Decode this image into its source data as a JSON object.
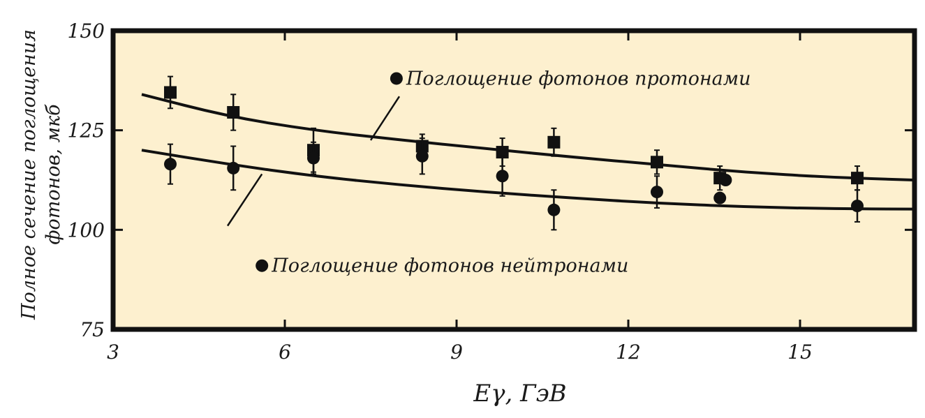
{
  "chart_data": {
    "type": "scatter",
    "xlabel": "Eγ, ГэВ",
    "ylabel": [
      "Полное сечение поглощения",
      "фотонов, мкб"
    ],
    "xlim": [
      3,
      17
    ],
    "ylim": [
      75,
      150
    ],
    "xticks": [
      3,
      6,
      9,
      12,
      15
    ],
    "yticks": [
      75,
      100,
      125,
      150
    ],
    "background": "#fdf0cf",
    "frame_color": "#111111",
    "series": [
      {
        "name": "Поглощение фотонов протонами",
        "marker": "square",
        "color": "#111111",
        "points": [
          {
            "x": 4.0,
            "y": 134.5,
            "err": 4.0
          },
          {
            "x": 5.1,
            "y": 129.5,
            "err": 4.5
          },
          {
            "x": 6.5,
            "y": 120.0,
            "err": 5.5
          },
          {
            "x": 8.4,
            "y": 121.0,
            "err": 3.0
          },
          {
            "x": 9.8,
            "y": 119.5,
            "err": 3.5
          },
          {
            "x": 10.7,
            "y": 122.0,
            "err": 3.5
          },
          {
            "x": 12.5,
            "y": 117.0,
            "err": 3.0
          },
          {
            "x": 13.6,
            "y": 113.0,
            "err": 3.0
          },
          {
            "x": 16.0,
            "y": 113.0,
            "err": 3.0
          }
        ],
        "fit": [
          [
            3.5,
            134.0
          ],
          [
            5.0,
            128.5
          ],
          [
            6.5,
            125.0
          ],
          [
            8.0,
            122.6
          ],
          [
            9.5,
            120.4
          ],
          [
            11.0,
            118.3
          ],
          [
            12.5,
            116.4
          ],
          [
            14.0,
            114.5
          ],
          [
            15.5,
            113.2
          ],
          [
            17.0,
            112.5
          ]
        ]
      },
      {
        "name": "Поглощение фотонов нейтронами",
        "marker": "circle",
        "color": "#111111",
        "points": [
          {
            "x": 4.0,
            "y": 116.5,
            "err": 5.0
          },
          {
            "x": 5.1,
            "y": 115.5,
            "err": 5.5
          },
          {
            "x": 6.5,
            "y": 118.0,
            "err": 4.0
          },
          {
            "x": 8.4,
            "y": 118.5,
            "err": 4.5
          },
          {
            "x": 9.8,
            "y": 113.5,
            "err": 5.0
          },
          {
            "x": 10.7,
            "y": 105.0,
            "err": 5.0
          },
          {
            "x": 12.5,
            "y": 109.5,
            "err": 4.0
          },
          {
            "x": 13.6,
            "y": 108.0,
            "err": 0
          },
          {
            "x": 16.0,
            "y": 106.0,
            "err": 4.0
          }
        ],
        "fit": [
          [
            3.5,
            120.0
          ],
          [
            5.0,
            116.5
          ],
          [
            6.5,
            113.5
          ],
          [
            8.0,
            111.3
          ],
          [
            9.5,
            109.5
          ],
          [
            11.0,
            108.0
          ],
          [
            12.5,
            106.7
          ],
          [
            14.0,
            105.8
          ],
          [
            15.5,
            105.3
          ],
          [
            17.0,
            105.2
          ]
        ]
      }
    ],
    "legend": [
      {
        "label": "Поглощение фотонов протонами",
        "marker_x": 7.95,
        "marker_y": 138,
        "pointer_from": [
          8.0,
          133.5
        ],
        "pointer_to": [
          7.5,
          122.5
        ]
      },
      {
        "label": "Поглощение фотонов нейтронами",
        "marker_x": 5.6,
        "marker_y": 91,
        "pointer_from": [
          5.0,
          101.0
        ],
        "pointer_to": [
          5.6,
          114.0
        ]
      }
    ],
    "extra_points": [
      {
        "x": 13.7,
        "y": 112.5,
        "marker": "circle"
      },
      {
        "x": 8.0,
        "y": 138.0,
        "marker": "circle"
      }
    ]
  }
}
